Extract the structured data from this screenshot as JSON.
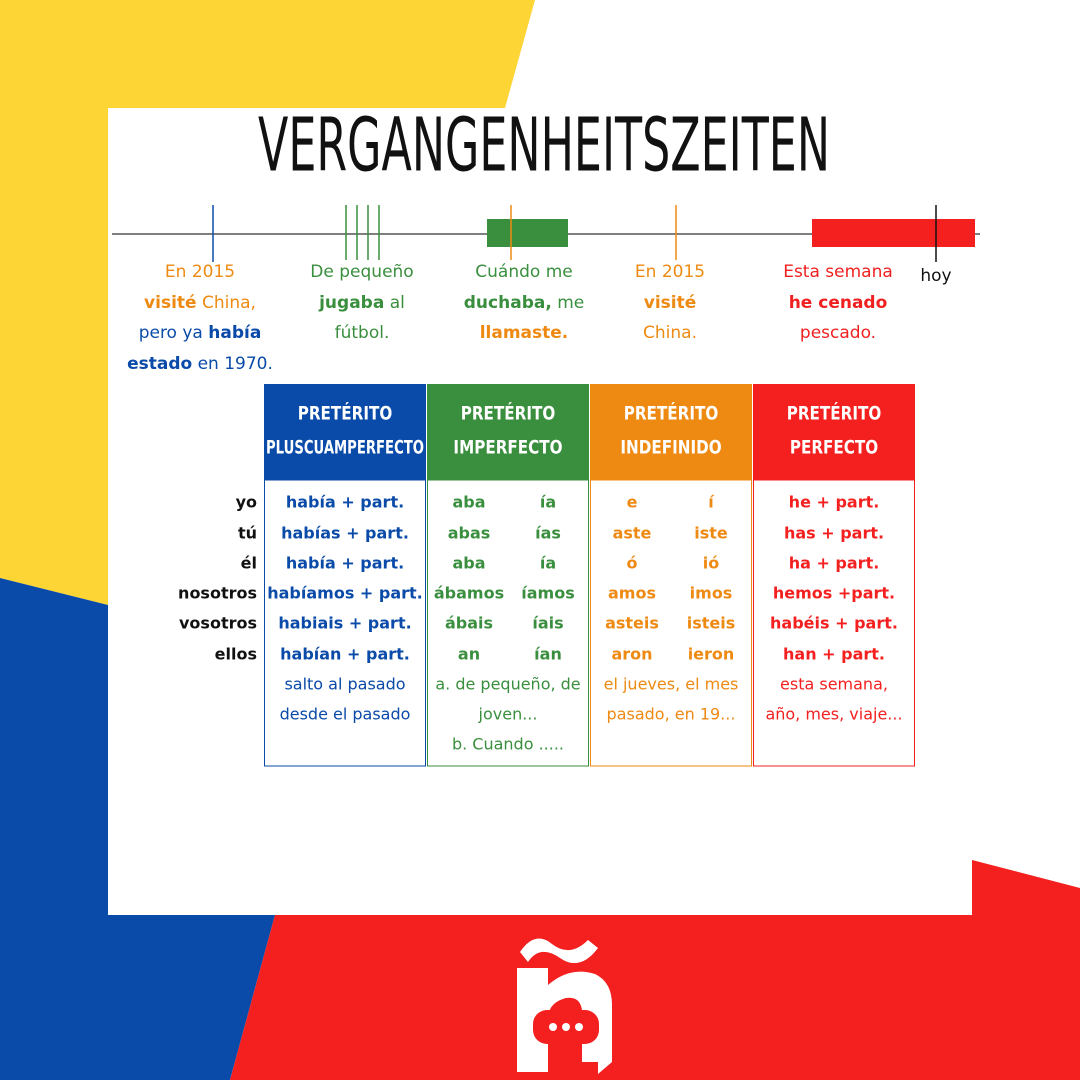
{
  "title": "VERGANGENHEITSZEITEN",
  "timeline": {
    "today": "hoy",
    "examples": [
      {
        "color": "#ee8a12",
        "lines": [
          [
            {
              "text": "En 2015"
            }
          ],
          [
            {
              "text": "visité",
              "bold": true
            },
            {
              "text": " China,"
            }
          ],
          [
            {
              "text": "pero ya ",
              "color": "#0a4aa8"
            },
            {
              "text": "había",
              "bold": true,
              "color": "#0a4aa8"
            }
          ],
          [
            {
              "text": "estado",
              "bold": true,
              "color": "#0a4aa8"
            },
            {
              "text": " en 1970.",
              "color": "#0a4aa8"
            }
          ]
        ]
      },
      {
        "color": "#3a8f3e",
        "lines": [
          [
            {
              "text": "De pequeño"
            }
          ],
          [
            {
              "text": "jugaba",
              "bold": true
            },
            {
              "text": " al"
            }
          ],
          [
            {
              "text": "fútbol."
            }
          ]
        ]
      },
      {
        "color": "#3a8f3e",
        "lines": [
          [
            {
              "text": "Cuándo me"
            }
          ],
          [
            {
              "text": "duchaba,",
              "bold": true
            },
            {
              "text": " me"
            }
          ],
          [
            {
              "text": "llamaste.",
              "bold": true,
              "color": "#ee8a12"
            }
          ]
        ]
      },
      {
        "color": "#ee8a12",
        "lines": [
          [
            {
              "text": "En 2015"
            }
          ],
          [
            {
              "text": "visité",
              "bold": true
            }
          ],
          [
            {
              "text": "China."
            }
          ]
        ]
      },
      {
        "color": "#f02020",
        "lines": [
          [
            {
              "text": "Esta semana"
            }
          ],
          [
            {
              "text": "he cenado",
              "bold": true
            }
          ],
          [
            {
              "text": "pescado."
            }
          ]
        ]
      }
    ]
  },
  "table": {
    "persons": [
      "yo",
      "tú",
      "él",
      "nosotros",
      "vosotros",
      "ellos"
    ],
    "columns": [
      {
        "color": "#0a4aa8",
        "header": [
          "PRETÉRITO",
          "PLUSCUAMPERFECTO"
        ],
        "rows": [
          "había + part.",
          "habías + part.",
          "había + part.",
          "habíamos + part.",
          "habiais + part.",
          "habían + part."
        ],
        "notes": [
          "salto al pasado",
          "desde el pasado"
        ]
      },
      {
        "color": "#3a8f3e",
        "header": [
          "PRETÉRITO",
          "IMPERFECTO"
        ],
        "rows": [
          [
            "aba",
            "ía"
          ],
          [
            "abas",
            "ías"
          ],
          [
            "aba",
            "ía"
          ],
          [
            "ábamos",
            "íamos"
          ],
          [
            "ábais",
            "íais"
          ],
          [
            "an",
            "ían"
          ]
        ],
        "notes": [
          "a. de pequeño, de",
          "joven...",
          "b. Cuando ....."
        ]
      },
      {
        "color": "#ee8a12",
        "header": [
          "PRETÉRITO",
          "INDEFINIDO"
        ],
        "rows": [
          [
            "e",
            "í"
          ],
          [
            "aste",
            "iste"
          ],
          [
            "ó",
            "ió"
          ],
          [
            "amos",
            "imos"
          ],
          [
            "asteis",
            "isteis"
          ],
          [
            "aron",
            "ieron"
          ]
        ],
        "notes": [
          "el jueves, el mes",
          "pasado, en 19..."
        ]
      },
      {
        "color": "#f41f1f",
        "header": [
          "PRETÉRITO",
          "PERFECTO"
        ],
        "rows": [
          "he + part.",
          "has + part.",
          "ha + part.",
          "hemos +part.",
          "habéis + part.",
          "han + part."
        ],
        "notes": [
          "esta semana,",
          "año, mes, viaje..."
        ]
      }
    ]
  }
}
